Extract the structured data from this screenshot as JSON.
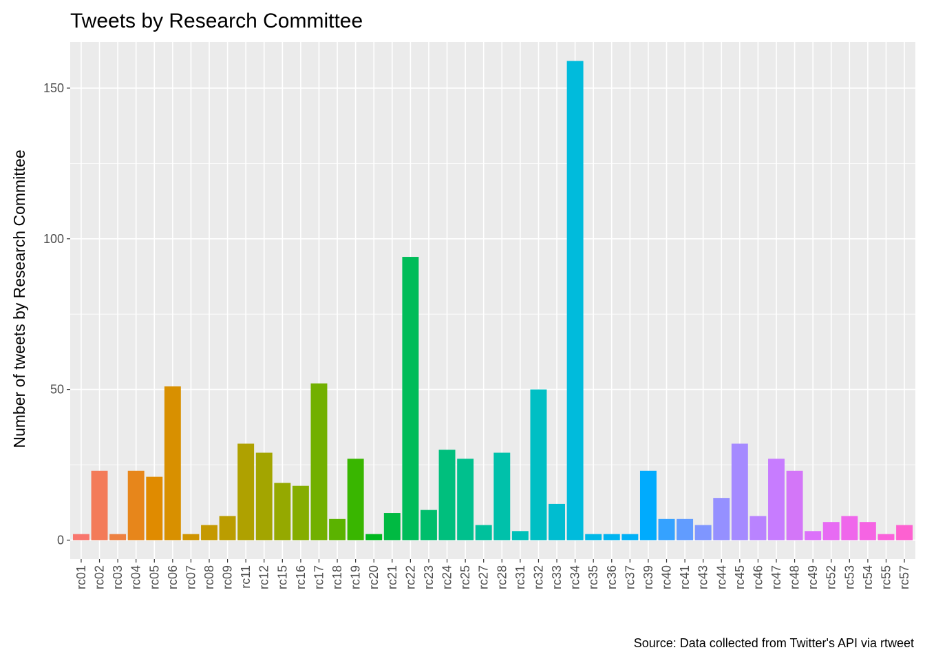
{
  "chart_data": {
    "type": "bar",
    "title": "Tweets by Research Committee",
    "xlabel": "",
    "ylabel": "Number of tweets by Research Committee",
    "caption": "Source: Data collected from Twitter's API via rtweet",
    "categories": [
      "rc01",
      "rc02",
      "rc03",
      "rc04",
      "rc05",
      "rc06",
      "rc07",
      "rc08",
      "rc09",
      "rc11",
      "rc12",
      "rc15",
      "rc16",
      "rc17",
      "rc18",
      "rc19",
      "rc20",
      "rc21",
      "rc22",
      "rc23",
      "rc24",
      "rc25",
      "rc27",
      "rc28",
      "rc31",
      "rc32",
      "rc33",
      "rc34",
      "rc35",
      "rc36",
      "rc37",
      "rc39",
      "rc40",
      "rc41",
      "rc43",
      "rc44",
      "rc45",
      "rc46",
      "rc47",
      "rc48",
      "rc49",
      "rc52",
      "rc53",
      "rc54",
      "rc55",
      "rc57"
    ],
    "values": [
      2,
      23,
      2,
      23,
      21,
      51,
      2,
      5,
      8,
      32,
      29,
      19,
      18,
      52,
      7,
      27,
      2,
      9,
      94,
      10,
      30,
      27,
      5,
      29,
      3,
      50,
      12,
      159,
      2,
      2,
      2,
      23,
      7,
      7,
      5,
      14,
      32,
      8,
      27,
      23,
      3,
      6,
      8,
      6,
      2,
      5
    ],
    "colors": [
      "#F8766D",
      "#F37B59",
      "#ED8141",
      "#E7861B",
      "#E08B00",
      "#D89000",
      "#CF9400",
      "#C59900",
      "#BB9D00",
      "#AFA100",
      "#A3A500",
      "#95A900",
      "#85AD00",
      "#72B000",
      "#5BB300",
      "#39B600",
      "#00B81F",
      "#00BA42",
      "#00BC59",
      "#00BE6C",
      "#00BF7D",
      "#00C08D",
      "#00C19C",
      "#00C1AA",
      "#00C0B8",
      "#00BFC4",
      "#00BDD0",
      "#00BBDC",
      "#00B8E7",
      "#00B4F0",
      "#00B0F6",
      "#00ABFD",
      "#35A2FF",
      "#619CFF",
      "#7F96FF",
      "#9590FF",
      "#A58AFF",
      "#B983FF",
      "#C77CFF",
      "#D376F8",
      "#DC71FA",
      "#E76BF3",
      "#EF67EB",
      "#F564E3",
      "#FA62DB",
      "#FD61D1"
    ],
    "ylim": [
      -6.3,
      165.3
    ],
    "yticks": [
      0,
      50,
      100,
      150
    ],
    "panel_background": "#EBEBEB",
    "grid": true,
    "legend": "none"
  }
}
